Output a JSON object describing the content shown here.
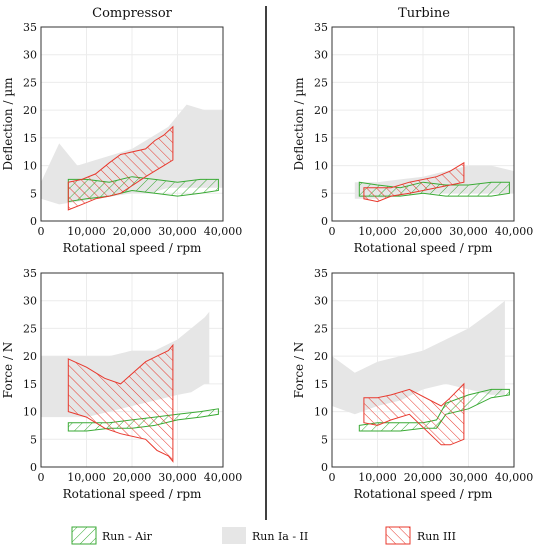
{
  "figure": {
    "column_titles": [
      "Compressor",
      "Turbine"
    ],
    "legend": [
      {
        "label": "Run - Air",
        "color": "#3aaa35",
        "style": "hatch-green"
      },
      {
        "label": "Run Ia - II",
        "color": "#e6e6e6",
        "style": "solid-gray"
      },
      {
        "label": "Run III",
        "color": "#e8392e",
        "style": "hatch-red"
      }
    ]
  },
  "chart_data": [
    {
      "type": "area",
      "panel": "compressor-deflection",
      "title": "Compressor",
      "xlabel": "Rotational speed / rpm",
      "ylabel": "Deflection / µm",
      "xlim": [
        0,
        40000
      ],
      "ylim": [
        0,
        35
      ],
      "xticks": [
        "0",
        "10,000",
        "20,000",
        "30,000",
        "40,000"
      ],
      "yticks": [
        "0",
        "5",
        "10",
        "15",
        "20",
        "25",
        "30",
        "35"
      ],
      "grid": true,
      "series": [
        {
          "name": "Run Ia - II",
          "kind": "band",
          "x": [
            0,
            4000,
            8000,
            12000,
            16000,
            20000,
            24000,
            28000,
            32000,
            36000,
            40000
          ],
          "lower": [
            4,
            3,
            3.5,
            4,
            4.5,
            5,
            5,
            6,
            6,
            6,
            6
          ],
          "upper": [
            7,
            14,
            10,
            11,
            12,
            13,
            15,
            17,
            21,
            20,
            20
          ]
        },
        {
          "name": "Run - Air",
          "kind": "band",
          "x": [
            6000,
            10000,
            15000,
            20000,
            25000,
            30000,
            35000,
            39000
          ],
          "lower": [
            3.5,
            4,
            4.5,
            5.5,
            5,
            4.5,
            5,
            5.5
          ],
          "upper": [
            7.5,
            7.5,
            7,
            8,
            7.5,
            7,
            7.5,
            7.5
          ]
        },
        {
          "name": "Run III",
          "kind": "band",
          "x": [
            6000,
            9000,
            12000,
            15000,
            17500,
            23000,
            25000,
            27000,
            29000
          ],
          "lower": [
            2,
            3,
            4,
            4.5,
            5,
            8,
            9,
            10,
            11
          ],
          "upper": [
            7,
            7.5,
            8.5,
            10.5,
            12,
            13,
            14.5,
            15.5,
            17
          ]
        }
      ]
    },
    {
      "type": "area",
      "panel": "turbine-deflection",
      "title": "Turbine",
      "xlabel": "Rotational speed / rpm",
      "ylabel": "Deflection / µm",
      "xlim": [
        0,
        40000
      ],
      "ylim": [
        0,
        35
      ],
      "xticks": [
        "0",
        "10,000",
        "20,000",
        "30,000",
        "40,000"
      ],
      "yticks": [
        "0",
        "5",
        "10",
        "15",
        "20",
        "25",
        "30",
        "35"
      ],
      "grid": true,
      "series": [
        {
          "name": "Run Ia - II",
          "kind": "band",
          "x": [
            5000,
            10000,
            15000,
            20000,
            25000,
            30000,
            35000,
            40000
          ],
          "lower": [
            4,
            4,
            4.5,
            5,
            5,
            5,
            5,
            5
          ],
          "upper": [
            7,
            7,
            7.5,
            8,
            9,
            10,
            10,
            9
          ]
        },
        {
          "name": "Run - Air",
          "kind": "band",
          "x": [
            6000,
            10000,
            15000,
            20000,
            25000,
            30000,
            35000,
            39000
          ],
          "lower": [
            4.5,
            4.5,
            4.5,
            5,
            4.5,
            4.5,
            4.5,
            5
          ],
          "upper": [
            7,
            6.5,
            6,
            7,
            6.5,
            6.5,
            7,
            7
          ]
        },
        {
          "name": "Run III",
          "kind": "band",
          "x": [
            7000,
            10000,
            13000,
            17000,
            23000,
            26000,
            29000
          ],
          "lower": [
            4,
            3.5,
            4.5,
            5,
            6,
            6.5,
            7
          ],
          "upper": [
            6,
            6,
            6,
            7,
            8,
            9,
            10.5
          ]
        }
      ]
    },
    {
      "type": "area",
      "panel": "compressor-force",
      "title": "",
      "xlabel": "Rotational speed / rpm",
      "ylabel": "Force / N",
      "xlim": [
        0,
        40000
      ],
      "ylim": [
        0,
        35
      ],
      "xticks": [
        "0",
        "10,000",
        "20,000",
        "30,000",
        "40,000"
      ],
      "yticks": [
        "0",
        "5",
        "10",
        "15",
        "20",
        "25",
        "30",
        "35"
      ],
      "grid": true,
      "series": [
        {
          "name": "Run Ia - II",
          "kind": "band",
          "x": [
            0,
            5000,
            10000,
            15000,
            20000,
            25000,
            30000,
            33000,
            36000,
            37000
          ],
          "lower": [
            9,
            9,
            9,
            10,
            11,
            12,
            13,
            13.5,
            15,
            15
          ],
          "upper": [
            20,
            20,
            20,
            20,
            21,
            21,
            23,
            25,
            27,
            28
          ]
        },
        {
          "name": "Run - Air",
          "kind": "band",
          "x": [
            6000,
            10000,
            15000,
            20000,
            25000,
            30000,
            35000,
            39000
          ],
          "lower": [
            6.5,
            6.5,
            7,
            7,
            7.5,
            8.5,
            9,
            9.5
          ],
          "upper": [
            8,
            8,
            8,
            8.5,
            9,
            9.5,
            10,
            10.5
          ]
        },
        {
          "name": "Run III",
          "kind": "band",
          "x": [
            6000,
            10000,
            14000,
            17500,
            23000,
            25500,
            28000,
            29000
          ],
          "lower": [
            10,
            9,
            7,
            6,
            5,
            3,
            2,
            1
          ],
          "upper": [
            19.5,
            18,
            16,
            15,
            19,
            20,
            21,
            22
          ]
        }
      ]
    },
    {
      "type": "area",
      "panel": "turbine-force",
      "title": "",
      "xlabel": "Rotational speed / rpm",
      "ylabel": "Force / N",
      "xlim": [
        0,
        40000
      ],
      "ylim": [
        0,
        35
      ],
      "xticks": [
        "0",
        "10,000",
        "20,000",
        "30,000",
        "40,000"
      ],
      "yticks": [
        "0",
        "5",
        "10",
        "15",
        "20",
        "25",
        "30",
        "35"
      ],
      "grid": true,
      "series": [
        {
          "name": "Run Ia - II",
          "kind": "band",
          "x": [
            0,
            5000,
            10000,
            15000,
            20000,
            25000,
            30000,
            35000,
            38000
          ],
          "lower": [
            11,
            9.5,
            11,
            12,
            14,
            15,
            14,
            13,
            13
          ],
          "upper": [
            20,
            17,
            19,
            20,
            21,
            23,
            25,
            28,
            30
          ]
        },
        {
          "name": "Run - Air",
          "kind": "band",
          "x": [
            6000,
            10000,
            15000,
            20000,
            23000,
            25000,
            30000,
            35000,
            39000
          ],
          "lower": [
            6.5,
            6.5,
            6.5,
            7,
            7,
            9.5,
            10.5,
            12.5,
            13
          ],
          "upper": [
            7.5,
            8,
            8,
            8,
            8.5,
            11.5,
            13,
            14,
            14
          ]
        },
        {
          "name": "Run III",
          "kind": "band",
          "x": [
            7000,
            10000,
            13000,
            17000,
            24000,
            26000,
            29000
          ],
          "lower": [
            8,
            7.5,
            8.5,
            9.5,
            4,
            4,
            5
          ],
          "upper": [
            12.5,
            12.5,
            13,
            14,
            11,
            12.5,
            15
          ]
        }
      ]
    }
  ]
}
